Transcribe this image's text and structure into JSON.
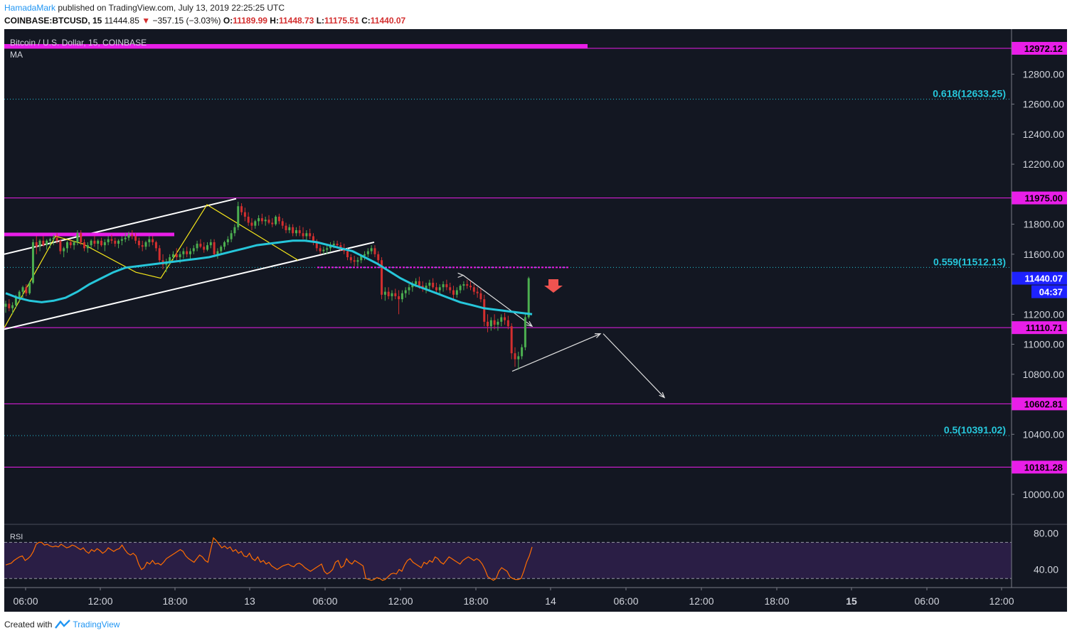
{
  "header": {
    "author": "HamadaMark",
    "published": "published on TradingView.com, July 13, 2019 22:25:25 UTC"
  },
  "ohlc": {
    "symbol": "COINBASE:BTCUSD, 15",
    "last": "11444.85",
    "change": "−357.15 (−3.03%)",
    "o_label": "O:",
    "o": "11189.99",
    "h_label": "H:",
    "h": "11448.73",
    "l_label": "L:",
    "l": "11175.51",
    "c_label": "C:",
    "c": "11440.07"
  },
  "legend": {
    "instrument": "Bitcoin / U.S. Dollar, 15, COINBASE",
    "indicator": "MA",
    "rsi": "RSI"
  },
  "footer": {
    "created_with": "Created with",
    "brand": "TradingView"
  },
  "colors": {
    "background": "#131722",
    "up": "#4caf50",
    "down": "#d32f2f",
    "ma": "#26c6da",
    "magenta": "#e91ee8",
    "fib": "#26c6da",
    "rsi": "#ff6d00",
    "rsi_band": "#2a1e45",
    "channel": "#ffffff",
    "zigzag": "#f5e61a"
  },
  "chart_data": {
    "type": "candlestick",
    "ylim": [
      9800,
      13100
    ],
    "y_ticks": [
      "12800.00",
      "12600.00",
      "12400.00",
      "12200.00",
      "11800.00",
      "11600.00",
      "11200.00",
      "11000.00",
      "10800.00",
      "10400.00",
      "10000.00"
    ],
    "x_ticks": [
      "06:00",
      "12:00",
      "18:00",
      "13",
      "06:00",
      "12:00",
      "18:00",
      "14",
      "06:00",
      "12:00",
      "18:00",
      "15",
      "06:00",
      "12:00"
    ],
    "x_ticks_bold": [
      "15"
    ],
    "horizontal_levels": [
      {
        "value": 12972.12,
        "label": "12972.12"
      },
      {
        "value": 11975.0,
        "label": "11975.00"
      },
      {
        "value": 11110.71,
        "label": "11110.71"
      },
      {
        "value": 10602.81,
        "label": "10602.81"
      },
      {
        "value": 10181.28,
        "label": "10181.28"
      }
    ],
    "fib_levels": [
      {
        "value": 12633.25,
        "label": "0.618(12633.25)"
      },
      {
        "value": 11512.13,
        "label": "0.559(11512.13)"
      },
      {
        "value": 10391.02,
        "label": "0.5(10391.02)"
      }
    ],
    "last_price": {
      "value": 11440.07,
      "label": "11440.07",
      "countdown": "04:37"
    },
    "rsi": {
      "ylim": [
        20,
        90
      ],
      "y_ticks": [
        "80.00",
        "40.00"
      ],
      "bands": [
        70,
        30
      ],
      "values": [
        45,
        46,
        47,
        50,
        52,
        54,
        55,
        50,
        52,
        55,
        60,
        68,
        70,
        70,
        67,
        68,
        66,
        65,
        66,
        65,
        68,
        66,
        64,
        65,
        67,
        66,
        64,
        62,
        64,
        60,
        58,
        62,
        60,
        63,
        61,
        58,
        60,
        64,
        62,
        60,
        62,
        63,
        67,
        62,
        58,
        56,
        58,
        55,
        46,
        40,
        42,
        48,
        46,
        50,
        46,
        47,
        45,
        48,
        52,
        54,
        56,
        58,
        60,
        62,
        60,
        55,
        52,
        50,
        48,
        52,
        56,
        54,
        50,
        48,
        62,
        75,
        72,
        68,
        64,
        66,
        63,
        65,
        60,
        62,
        58,
        60,
        55,
        54,
        58,
        52,
        50,
        54,
        48,
        50,
        46,
        48,
        44,
        42,
        40,
        42,
        44,
        45,
        46,
        44,
        43,
        46,
        47,
        45,
        42,
        40,
        38,
        40,
        42,
        44,
        46,
        38,
        35,
        37,
        40,
        48,
        50,
        42,
        44,
        52,
        48,
        46,
        50,
        48,
        46,
        44,
        30,
        29,
        28,
        29,
        31,
        30,
        28,
        29,
        32,
        35,
        36,
        35,
        40,
        38,
        45,
        50,
        52,
        48,
        46,
        44,
        42,
        48,
        46,
        50,
        48,
        54,
        52,
        48,
        46,
        50,
        54,
        52,
        50,
        48,
        46,
        50,
        52,
        54,
        52,
        50,
        52,
        50,
        46,
        40,
        32,
        30,
        28,
        30,
        38,
        42,
        40,
        38,
        32,
        30,
        29,
        29,
        30,
        38,
        48,
        55,
        65
      ]
    },
    "candles": [
      [
        11250,
        11290,
        11210,
        11270
      ],
      [
        11270,
        11300,
        11220,
        11240
      ],
      [
        11240,
        11280,
        11200,
        11260
      ],
      [
        11260,
        11330,
        11240,
        11310
      ],
      [
        11310,
        11360,
        11280,
        11350
      ],
      [
        11350,
        11390,
        11300,
        11380
      ],
      [
        11380,
        11400,
        11320,
        11340
      ],
      [
        11340,
        11420,
        11330,
        11410
      ],
      [
        11410,
        11700,
        11400,
        11680
      ],
      [
        11680,
        11720,
        11600,
        11650
      ],
      [
        11650,
        11700,
        11620,
        11690
      ],
      [
        11690,
        11720,
        11650,
        11660
      ],
      [
        11660,
        11700,
        11630,
        11690
      ],
      [
        11690,
        11710,
        11640,
        11700
      ],
      [
        11700,
        11730,
        11660,
        11710
      ],
      [
        11710,
        11740,
        11670,
        11690
      ],
      [
        11690,
        11700,
        11600,
        11620
      ],
      [
        11620,
        11650,
        11580,
        11640
      ],
      [
        11640,
        11690,
        11610,
        11680
      ],
      [
        11680,
        11700,
        11640,
        11660
      ],
      [
        11660,
        11690,
        11630,
        11680
      ],
      [
        11680,
        11760,
        11660,
        11740
      ],
      [
        11740,
        11760,
        11660,
        11680
      ],
      [
        11680,
        11700,
        11620,
        11640
      ],
      [
        11640,
        11680,
        11610,
        11660
      ],
      [
        11660,
        11700,
        11640,
        11690
      ],
      [
        11690,
        11720,
        11650,
        11670
      ],
      [
        11670,
        11700,
        11630,
        11690
      ],
      [
        11690,
        11710,
        11650,
        11660
      ],
      [
        11660,
        11700,
        11620,
        11680
      ],
      [
        11680,
        11720,
        11660,
        11700
      ],
      [
        11700,
        11730,
        11670,
        11690
      ],
      [
        11690,
        11710,
        11650,
        11670
      ],
      [
        11670,
        11700,
        11640,
        11690
      ],
      [
        11690,
        11720,
        11660,
        11700
      ],
      [
        11700,
        11740,
        11680,
        11710
      ],
      [
        11710,
        11750,
        11690,
        11730
      ],
      [
        11730,
        11760,
        11700,
        11720
      ],
      [
        11720,
        11740,
        11670,
        11690
      ],
      [
        11690,
        11710,
        11640,
        11660
      ],
      [
        11660,
        11690,
        11620,
        11650
      ],
      [
        11650,
        11690,
        11630,
        11680
      ],
      [
        11680,
        11720,
        11650,
        11700
      ],
      [
        11700,
        11720,
        11660,
        11680
      ],
      [
        11680,
        11690,
        11620,
        11640
      ],
      [
        11640,
        11660,
        11540,
        11560
      ],
      [
        11560,
        11600,
        11500,
        11530
      ],
      [
        11530,
        11570,
        11480,
        11550
      ],
      [
        11550,
        11600,
        11530,
        11580
      ],
      [
        11580,
        11620,
        11560,
        11600
      ],
      [
        11600,
        11640,
        11560,
        11580
      ],
      [
        11580,
        11620,
        11540,
        11600
      ],
      [
        11600,
        11640,
        11570,
        11620
      ],
      [
        11620,
        11650,
        11580,
        11600
      ],
      [
        11600,
        11640,
        11570,
        11620
      ],
      [
        11620,
        11660,
        11600,
        11640
      ],
      [
        11640,
        11690,
        11620,
        11670
      ],
      [
        11670,
        11700,
        11640,
        11650
      ],
      [
        11650,
        11680,
        11610,
        11630
      ],
      [
        11630,
        11680,
        11620,
        11660
      ],
      [
        11660,
        11700,
        11640,
        11680
      ],
      [
        11680,
        11700,
        11580,
        11600
      ],
      [
        11600,
        11640,
        11570,
        11620
      ],
      [
        11620,
        11660,
        11600,
        11650
      ],
      [
        11650,
        11690,
        11630,
        11680
      ],
      [
        11680,
        11720,
        11660,
        11700
      ],
      [
        11700,
        11760,
        11680,
        11740
      ],
      [
        11740,
        11800,
        11720,
        11780
      ],
      [
        11780,
        11950,
        11760,
        11920
      ],
      [
        11920,
        11940,
        11860,
        11880
      ],
      [
        11880,
        11910,
        11820,
        11850
      ],
      [
        11850,
        11880,
        11790,
        11810
      ],
      [
        11810,
        11840,
        11760,
        11790
      ],
      [
        11790,
        11830,
        11770,
        11820
      ],
      [
        11820,
        11860,
        11790,
        11840
      ],
      [
        11840,
        11870,
        11800,
        11820
      ],
      [
        11820,
        11850,
        11790,
        11830
      ],
      [
        11830,
        11860,
        11800,
        11810
      ],
      [
        11810,
        11840,
        11780,
        11800
      ],
      [
        11800,
        11860,
        11790,
        11850
      ],
      [
        11850,
        11870,
        11800,
        11820
      ],
      [
        11820,
        11840,
        11770,
        11790
      ],
      [
        11790,
        11810,
        11740,
        11760
      ],
      [
        11760,
        11800,
        11740,
        11780
      ],
      [
        11780,
        11800,
        11720,
        11740
      ],
      [
        11740,
        11780,
        11720,
        11760
      ],
      [
        11760,
        11790,
        11720,
        11740
      ],
      [
        11740,
        11780,
        11700,
        11720
      ],
      [
        11720,
        11760,
        11690,
        11740
      ],
      [
        11740,
        11770,
        11700,
        11720
      ],
      [
        11720,
        11740,
        11660,
        11680
      ],
      [
        11680,
        11700,
        11620,
        11640
      ],
      [
        11640,
        11660,
        11600,
        11620
      ],
      [
        11620,
        11650,
        11600,
        11630
      ],
      [
        11630,
        11660,
        11600,
        11640
      ],
      [
        11640,
        11680,
        11620,
        11660
      ],
      [
        11660,
        11690,
        11640,
        11670
      ],
      [
        11670,
        11690,
        11640,
        11660
      ],
      [
        11660,
        11680,
        11620,
        11640
      ],
      [
        11640,
        11670,
        11600,
        11620
      ],
      [
        11620,
        11640,
        11560,
        11580
      ],
      [
        11580,
        11600,
        11540,
        11560
      ],
      [
        11560,
        11590,
        11520,
        11550
      ],
      [
        11550,
        11580,
        11520,
        11560
      ],
      [
        11560,
        11600,
        11540,
        11590
      ],
      [
        11590,
        11620,
        11560,
        11600
      ],
      [
        11600,
        11640,
        11580,
        11620
      ],
      [
        11620,
        11660,
        11600,
        11640
      ],
      [
        11640,
        11660,
        11580,
        11600
      ],
      [
        11600,
        11620,
        11540,
        11560
      ],
      [
        11560,
        11580,
        11300,
        11330
      ],
      [
        11330,
        11380,
        11290,
        11350
      ],
      [
        11350,
        11380,
        11300,
        11320
      ],
      [
        11320,
        11360,
        11290,
        11340
      ],
      [
        11340,
        11370,
        11300,
        11320
      ],
      [
        11320,
        11360,
        11200,
        11300
      ],
      [
        11300,
        11360,
        11280,
        11340
      ],
      [
        11340,
        11380,
        11310,
        11360
      ],
      [
        11360,
        11400,
        11330,
        11380
      ],
      [
        11380,
        11420,
        11350,
        11400
      ],
      [
        11400,
        11440,
        11380,
        11420
      ],
      [
        11420,
        11450,
        11370,
        11390
      ],
      [
        11390,
        11420,
        11350,
        11370
      ],
      [
        11370,
        11410,
        11340,
        11390
      ],
      [
        11390,
        11430,
        11360,
        11410
      ],
      [
        11410,
        11440,
        11370,
        11380
      ],
      [
        11380,
        11410,
        11340,
        11360
      ],
      [
        11360,
        11400,
        11330,
        11380
      ],
      [
        11380,
        11420,
        11350,
        11400
      ],
      [
        11400,
        11430,
        11360,
        11380
      ],
      [
        11380,
        11410,
        11340,
        11360
      ],
      [
        11360,
        11390,
        11300,
        11330
      ],
      [
        11330,
        11380,
        11310,
        11360
      ],
      [
        11360,
        11400,
        11340,
        11390
      ],
      [
        11390,
        11420,
        11360,
        11400
      ],
      [
        11400,
        11430,
        11370,
        11390
      ],
      [
        11390,
        11420,
        11360,
        11380
      ],
      [
        11380,
        11400,
        11330,
        11350
      ],
      [
        11350,
        11380,
        11310,
        11340
      ],
      [
        11340,
        11370,
        11280,
        11300
      ],
      [
        11300,
        11330,
        11120,
        11150
      ],
      [
        11150,
        11200,
        11080,
        11120
      ],
      [
        11120,
        11180,
        11090,
        11160
      ],
      [
        11160,
        11200,
        11100,
        11130
      ],
      [
        11130,
        11170,
        11090,
        11150
      ],
      [
        11150,
        11200,
        11120,
        11180
      ],
      [
        11180,
        11210,
        11130,
        11160
      ],
      [
        11160,
        11190,
        11100,
        11120
      ],
      [
        11120,
        11140,
        10900,
        10940
      ],
      [
        10940,
        10980,
        10850,
        10900
      ],
      [
        10900,
        10950,
        10830,
        10920
      ],
      [
        10920,
        11000,
        10900,
        10980
      ],
      [
        10980,
        11200,
        10960,
        11180
      ],
      [
        11180,
        11450,
        11170,
        11440
      ]
    ],
    "ma": [
      11340,
      11310,
      11290,
      11280,
      11290,
      11310,
      11350,
      11400,
      11440,
      11480,
      11510,
      11520,
      11530,
      11540,
      11550,
      11560,
      11570,
      11580,
      11600,
      11620,
      11640,
      11660,
      11670,
      11680,
      11690,
      11690,
      11680,
      11660,
      11640,
      11620,
      11580,
      11540,
      11490,
      11440,
      11400,
      11370,
      11340,
      11310,
      11280,
      11260,
      11240,
      11230,
      11220,
      11210,
      11200
    ]
  }
}
